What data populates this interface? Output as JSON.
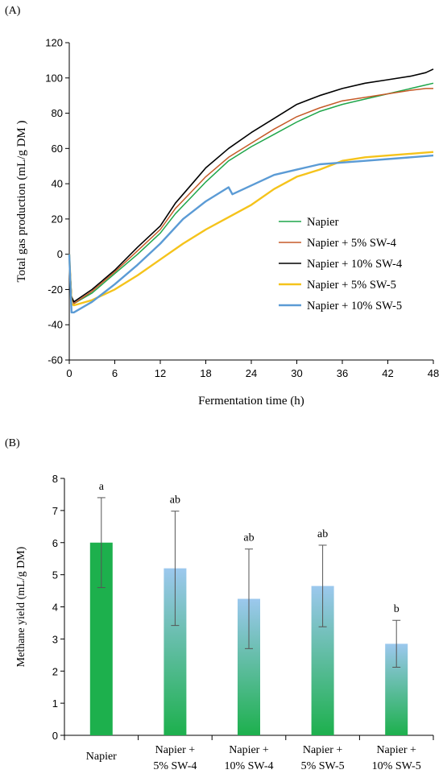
{
  "chart_data": [
    {
      "panel_label": "(A)",
      "type": "line",
      "xlabel": "Fermentation time (h)",
      "ylabel": "Total gas production (mL/g DM )",
      "xlim": [
        0,
        48
      ],
      "ylim": [
        -60,
        120
      ],
      "xticks": [
        0,
        6,
        12,
        18,
        24,
        30,
        36,
        42,
        48
      ],
      "yticks": [
        -60,
        -40,
        -20,
        0,
        20,
        40,
        60,
        80,
        100,
        120
      ],
      "grid": false,
      "legend_position": "right",
      "series": [
        {
          "name": "Napier",
          "color": "#1fa64a",
          "x": [
            0,
            0.3,
            0.6,
            3,
            6,
            9,
            12,
            14,
            16,
            18,
            21,
            24,
            27,
            30,
            33,
            36,
            39,
            42,
            45,
            47,
            48
          ],
          "y": [
            0,
            -24,
            -28,
            -22,
            -11,
            0,
            12,
            23,
            32,
            41,
            53,
            61,
            68,
            75,
            81,
            85,
            88,
            91,
            94,
            96,
            97
          ]
        },
        {
          "name": "Napier + 5% SW-4",
          "color": "#c55a28",
          "x": [
            0,
            0.3,
            0.6,
            3,
            6,
            9,
            12,
            14,
            16,
            18,
            21,
            24,
            27,
            30,
            33,
            36,
            39,
            42,
            45,
            47,
            48
          ],
          "y": [
            0,
            -24,
            -28,
            -21,
            -10,
            2,
            14,
            26,
            35,
            44,
            55,
            63,
            71,
            78,
            83,
            87,
            89,
            91,
            93,
            94,
            94
          ]
        },
        {
          "name": "Napier + 10% SW-4",
          "color": "#000000",
          "x": [
            0,
            0.3,
            0.6,
            3,
            6,
            9,
            12,
            14,
            16,
            18,
            21,
            24,
            27,
            30,
            33,
            36,
            39,
            42,
            45,
            47,
            48
          ],
          "y": [
            0,
            -24,
            -27,
            -20,
            -9,
            4,
            16,
            29,
            39,
            49,
            60,
            69,
            77,
            85,
            90,
            94,
            97,
            99,
            101,
            103,
            105
          ]
        },
        {
          "name": "Napier + 5% SW-5",
          "color": "#f5c31b",
          "x": [
            0,
            0.3,
            0.6,
            3,
            6,
            9,
            12,
            15,
            18,
            21,
            24,
            27,
            30,
            33,
            36,
            39,
            42,
            45,
            48
          ],
          "y": [
            0,
            -28,
            -29,
            -26,
            -20,
            -12,
            -3,
            6,
            14,
            21,
            28,
            37,
            44,
            48,
            53,
            55,
            56,
            57,
            58
          ]
        },
        {
          "name": "Napier + 10% SW-5",
          "color": "#5b9bd5",
          "x": [
            0,
            0.3,
            0.6,
            3,
            6,
            9,
            12,
            15,
            18,
            21,
            21.5,
            24,
            27,
            30,
            33,
            36,
            39,
            42,
            45,
            48
          ],
          "y": [
            0,
            -33,
            -33,
            -27,
            -17,
            -6,
            6,
            20,
            30,
            38,
            34,
            39,
            45,
            48,
            51,
            52,
            53,
            54,
            55,
            56
          ]
        }
      ]
    },
    {
      "panel_label": "(B)",
      "type": "bar",
      "ylabel": "Methane yield (mL/g DM)",
      "ylim": [
        0,
        8
      ],
      "yticks": [
        0,
        1,
        2,
        3,
        4,
        5,
        6,
        7,
        8
      ],
      "grid": false,
      "categories": [
        [
          "Napier"
        ],
        [
          "Napier +",
          "5% SW-4"
        ],
        [
          "Napier +",
          "10% SW-4"
        ],
        [
          "Napier +",
          "5% SW-5"
        ],
        [
          "Napier +",
          "10% SW-5"
        ]
      ],
      "values": [
        6.0,
        5.2,
        4.25,
        4.65,
        2.85
      ],
      "errors": [
        1.4,
        1.78,
        1.55,
        1.27,
        0.73
      ],
      "letters": [
        "a",
        "ab",
        "ab",
        "ab",
        "b"
      ],
      "colors": {
        "solid": "#1db04d",
        "gradient_top": "#9cc8ee",
        "gradient_bottom": "#1db04d"
      }
    }
  ]
}
